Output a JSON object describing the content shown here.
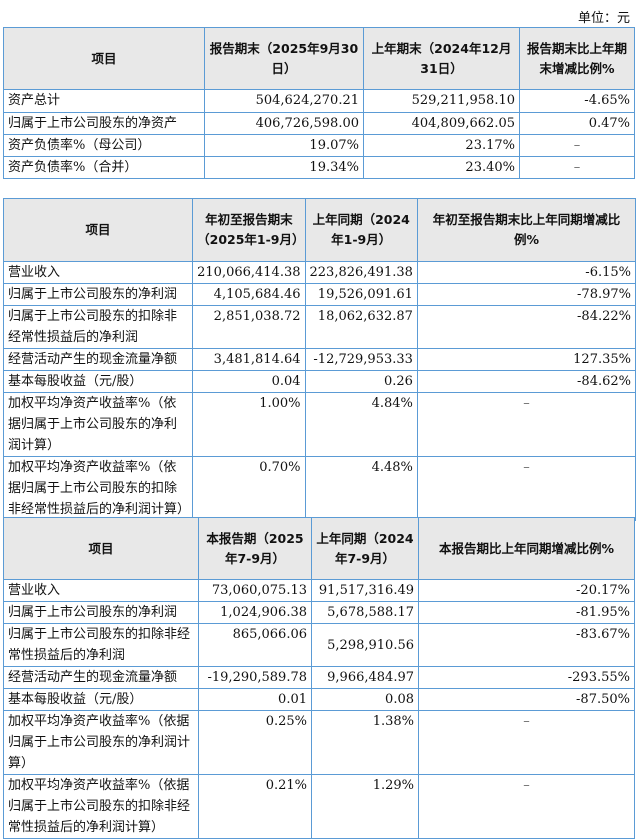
{
  "unit_label": "单位：元",
  "tables": [
    {
      "headers": [
        "项目",
        "报告期末（2025年9月30日）",
        "上年期末（2024年12月31日）",
        "报告期末比上年期末增减比例%"
      ],
      "rows": [
        [
          "资产总计",
          "504,624,270.21",
          "529,211,958.10",
          "-4.65%"
        ],
        [
          "归属于上市公司股东的净资产",
          "406,726,598.00",
          "404,809,662.05",
          "0.47%"
        ],
        [
          "资产负债率%（母公司）",
          "19.07%",
          "23.17%",
          "–"
        ],
        [
          "资产负债率%（合并）",
          "19.34%",
          "23.40%",
          "–"
        ]
      ]
    },
    {
      "headers": [
        "项目",
        "年初至报告期末（2025年1-9月）",
        "上年同期（2024年1-9月）",
        "年初至报告期末比上年同期增减比例%"
      ],
      "rows": [
        [
          "营业收入",
          "210,066,414.38",
          "223,826,491.38",
          "-6.15%"
        ],
        [
          "归属于上市公司股东的净利润",
          "4,105,684.46",
          "19,526,091.61",
          "-78.97%"
        ],
        [
          "归属于上市公司股东的扣除非经常性损益后的净利润",
          "2,851,038.72",
          "18,062,632.87",
          "-84.22%"
        ],
        [
          "经营活动产生的现金流量净额",
          "3,481,814.64",
          "-12,729,953.33",
          "127.35%"
        ],
        [
          "基本每股收益（元/股）",
          "0.04",
          "0.26",
          "-84.62%"
        ],
        [
          "加权平均净资产收益率%（依据归属于上市公司股东的净利润计算）",
          "1.00%",
          "4.84%",
          "–"
        ],
        [
          "加权平均净资产收益率%（依据归属于上市公司股东的扣除非经常性损益后的净利润计算）",
          "0.70%",
          "4.48%",
          "–"
        ]
      ]
    },
    {
      "headers": [
        "项目",
        "本报告期（2025年7-9月）",
        "上年同期（2024年7-9月）",
        "本报告期比上年同期增减比例%"
      ],
      "rows": [
        [
          "营业收入",
          "73,060,075.13",
          "91,517,316.49",
          "-20.17%"
        ],
        [
          "归属于上市公司股东的净利润",
          "1,024,906.38",
          "5,678,588.17",
          "-81.95%"
        ],
        [
          "归属于上市公司股东的扣除非经常性损益后的净利润",
          "865,066.06",
          "5,298,910.56",
          "-83.67%"
        ],
        [
          "经营活动产生的现金流量净额",
          "-19,290,589.78",
          "9,966,484.97",
          "-293.55%"
        ],
        [
          "基本每股收益（元/股）",
          "0.01",
          "0.08",
          "-87.50%"
        ],
        [
          "加权平均净资产收益率%（依据归属于上市公司股东的净利润计算）",
          "0.25%",
          "1.38%",
          "–"
        ],
        [
          "加权平均净资产收益率%（依据归属于上市公司股东的扣除非经常性损益后的净利润计算）",
          "0.21%",
          "1.29%",
          "–"
        ]
      ]
    }
  ]
}
